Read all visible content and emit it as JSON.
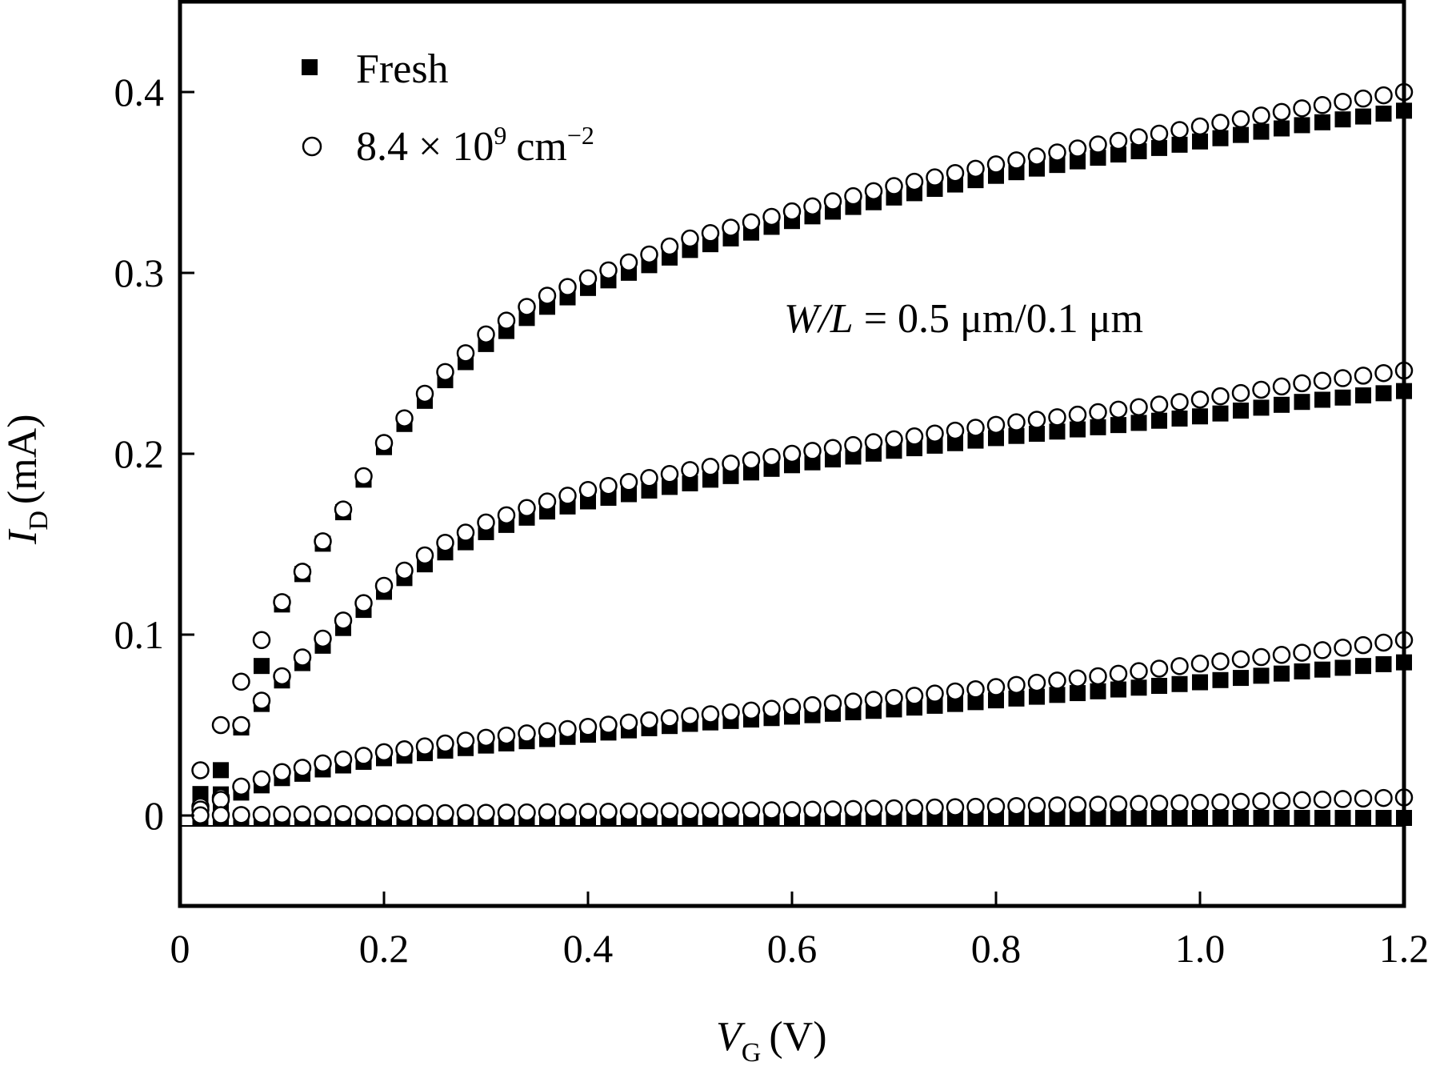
{
  "chart_data": {
    "type": "scatter",
    "xlabel": {
      "main": "V",
      "sub": "G",
      "unit": "(V)"
    },
    "ylabel": {
      "main": "I",
      "sub": "D",
      "unit": "(mA)"
    },
    "xlim": [
      0,
      1.2
    ],
    "ylim": [
      -0.05,
      0.45
    ],
    "x_ticks": [
      0,
      0.2,
      0.4,
      0.6,
      0.8,
      1.0,
      1.2
    ],
    "x_tick_labels": [
      "0",
      "0.2",
      "0.4",
      "0.6",
      "0.8",
      "1.0",
      "1.2"
    ],
    "y_ticks": [
      0,
      0.1,
      0.2,
      0.3,
      0.4
    ],
    "y_tick_labels": [
      "0",
      "0.1",
      "0.2",
      "0.3",
      "0.4"
    ],
    "legend": {
      "position": "top-left",
      "entries": [
        {
          "marker": "filled-square",
          "label": "Fresh"
        },
        {
          "marker": "open-circle",
          "label_base": "8.4 × 10",
          "label_exp": "9",
          "label_unit": "cm",
          "label_unit_exp": "−2"
        }
      ]
    },
    "annotation": {
      "italic_part": "W/L",
      "rest": " = 0.5 μm/0.1 μm",
      "position": "upper-right of plot"
    },
    "grid": false,
    "series": [
      {
        "name": "Fresh",
        "marker": "filled-square",
        "curves": [
          {
            "x": [
              0,
              0.05,
              0.1,
              0.15,
              0.2,
              0.25,
              0.3,
              0.35,
              0.4,
              0.5,
              0.6,
              0.7,
              0.8,
              0.9,
              1.0,
              1.1,
              1.2
            ],
            "y": [
              0,
              0.033,
              0.118,
              0.16,
              0.205,
              0.237,
              0.262,
              0.28,
              0.293,
              0.314,
              0.33,
              0.343,
              0.355,
              0.365,
              0.374,
              0.383,
              0.391
            ]
          },
          {
            "x": [
              0,
              0.04,
              0.06,
              0.1,
              0.15,
              0.2,
              0.25,
              0.3,
              0.35,
              0.4,
              0.5,
              0.6,
              0.7,
              0.8,
              0.9,
              1.0,
              1.1,
              1.2
            ],
            "y": [
              0,
              0.013,
              0.05,
              0.076,
              0.1,
              0.125,
              0.144,
              0.158,
              0.168,
              0.175,
              0.185,
              0.195,
              0.203,
              0.21,
              0.216,
              0.222,
              0.23,
              0.236
            ]
          },
          {
            "x": [
              0,
              0.03,
              0.06,
              0.1,
              0.15,
              0.2,
              0.3,
              0.4,
              0.5,
              0.6,
              0.7,
              0.8,
              0.9,
              1.0,
              1.1,
              1.2
            ],
            "y": [
              0,
              0.003,
              0.014,
              0.022,
              0.028,
              0.033,
              0.04,
              0.046,
              0.052,
              0.056,
              0.06,
              0.065,
              0.07,
              0.075,
              0.081,
              0.086
            ]
          },
          {
            "x": [
              0,
              0.2,
              0.4,
              0.6,
              0.8,
              1.0,
              1.2
            ],
            "y": [
              0,
              0,
              0,
              0,
              0,
              0,
              0
            ]
          }
        ]
      },
      {
        "name": "8.4 × 10⁹ cm⁻²",
        "marker": "open-circle",
        "curves": [
          {
            "x": [
              0,
              0.02,
              0.04,
              0.06,
              0.08,
              0.1,
              0.15,
              0.2,
              0.25,
              0.3,
              0.35,
              0.4,
              0.5,
              0.6,
              0.7,
              0.8,
              0.9,
              1.0,
              1.1,
              1.2
            ],
            "y": [
              0,
              0.025,
              0.05,
              0.074,
              0.097,
              0.118,
              0.16,
              0.206,
              0.24,
              0.266,
              0.285,
              0.297,
              0.319,
              0.334,
              0.348,
              0.36,
              0.371,
              0.381,
              0.391,
              0.4
            ]
          },
          {
            "x": [
              0,
              0.04,
              0.06,
              0.1,
              0.15,
              0.2,
              0.25,
              0.3,
              0.35,
              0.4,
              0.5,
              0.6,
              0.7,
              0.8,
              0.9,
              1.0,
              1.1,
              1.2
            ],
            "y": [
              0,
              0.01,
              0.05,
              0.077,
              0.103,
              0.127,
              0.148,
              0.162,
              0.172,
              0.18,
              0.191,
              0.2,
              0.208,
              0.216,
              0.223,
              0.23,
              0.239,
              0.246
            ]
          },
          {
            "x": [
              0,
              0.03,
              0.06,
              0.1,
              0.15,
              0.2,
              0.3,
              0.4,
              0.5,
              0.6,
              0.7,
              0.8,
              0.9,
              1.0,
              1.1,
              1.2
            ],
            "y": [
              0,
              0.005,
              0.016,
              0.024,
              0.03,
              0.035,
              0.043,
              0.049,
              0.055,
              0.06,
              0.065,
              0.071,
              0.077,
              0.084,
              0.09,
              0.097
            ]
          },
          {
            "x": [
              0,
              0.2,
              0.4,
              0.6,
              0.8,
              1.0,
              1.2
            ],
            "y": [
              0,
              0.001,
              0.002,
              0.003,
              0.005,
              0.007,
              0.01
            ]
          }
        ]
      }
    ]
  }
}
